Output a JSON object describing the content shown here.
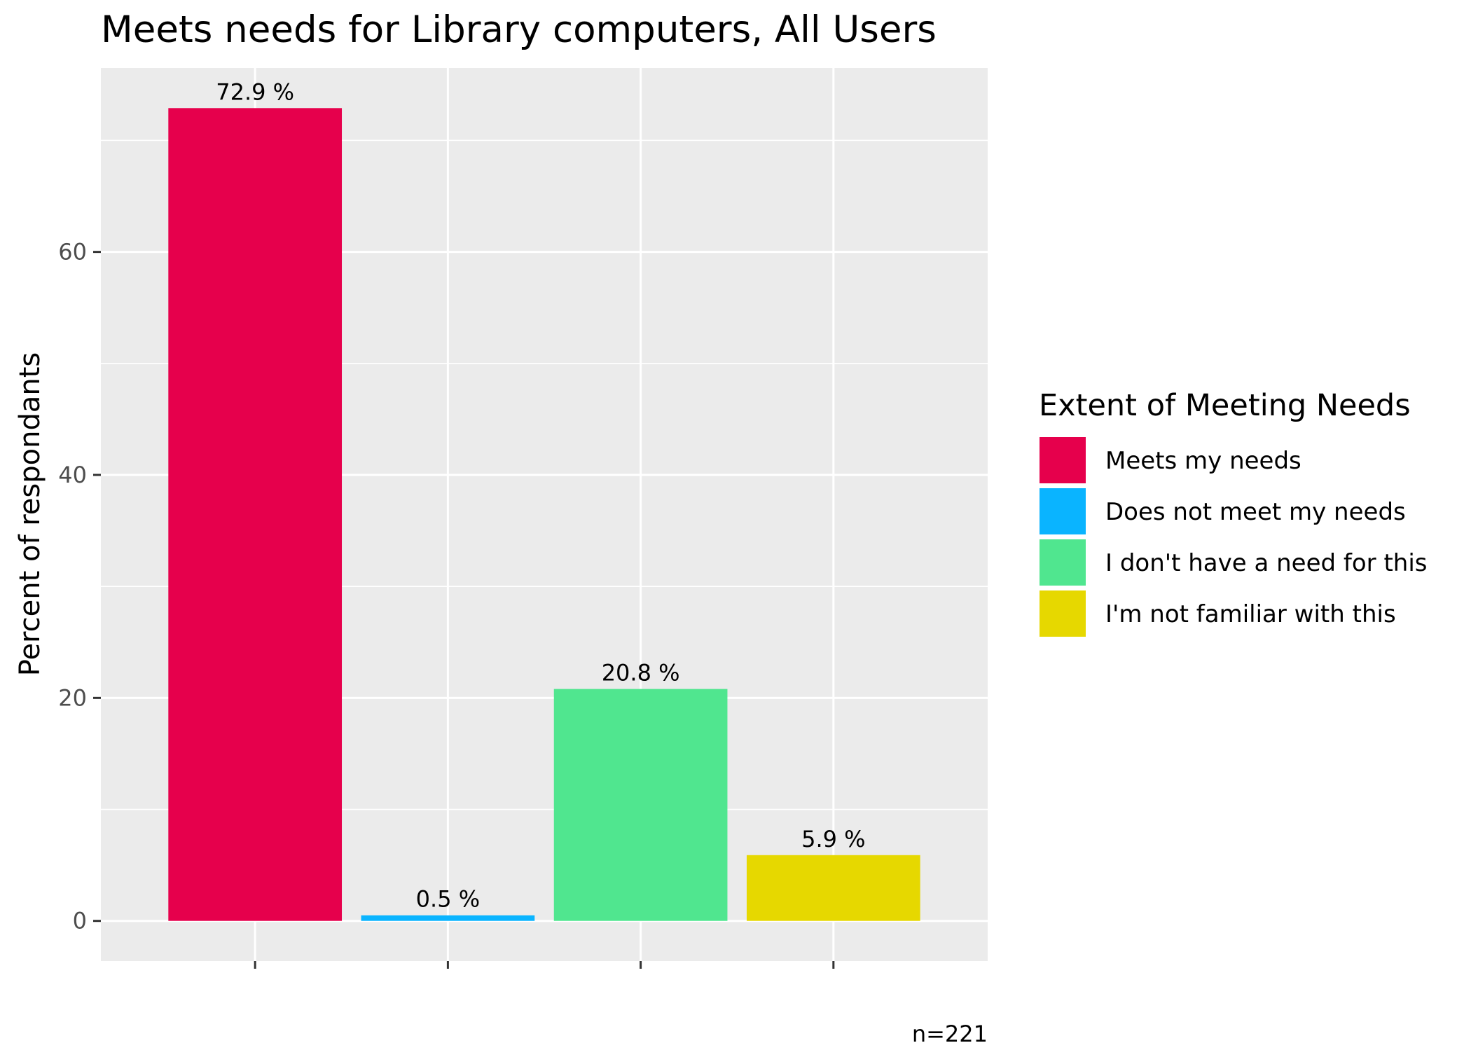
{
  "chart_data": {
    "type": "bar",
    "title": "Meets needs for Library computers, All Users",
    "xlabel": "",
    "ylabel": "Percent of respondants",
    "categories": [
      "Meets my needs",
      "Does not meet my needs",
      "I don't have a need for this",
      "I'm not familiar with this"
    ],
    "values": [
      72.9,
      0.5,
      20.8,
      5.9
    ],
    "data_labels": [
      "72.9 %",
      "0.5 %",
      "20.8 %",
      "5.9 %"
    ],
    "colors": [
      "#e6004c",
      "#0ab4ff",
      "#50e68f",
      "#e6d800"
    ],
    "ylim": [
      -3.6,
      76.5
    ],
    "yticks": [
      0,
      20,
      40,
      60
    ],
    "grid": true,
    "legend": {
      "title": "Extent of Meeting Needs",
      "position": "right"
    },
    "caption": "n=221"
  }
}
